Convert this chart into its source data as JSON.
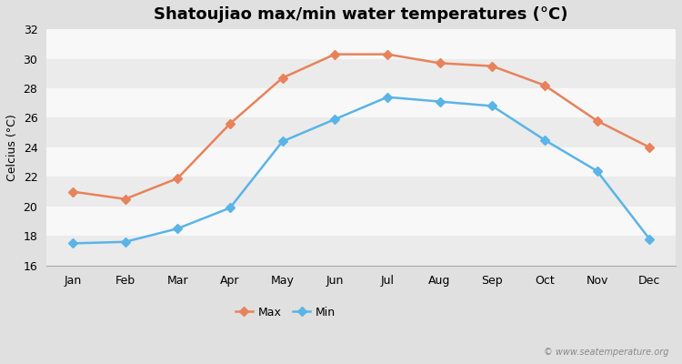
{
  "title": "Shatoujiao max/min water temperatures (°C)",
  "xlabel_months": [
    "Jan",
    "Feb",
    "Mar",
    "Apr",
    "May",
    "Jun",
    "Jul",
    "Aug",
    "Sep",
    "Oct",
    "Nov",
    "Dec"
  ],
  "max_values": [
    21.0,
    20.5,
    21.9,
    25.6,
    28.7,
    30.3,
    30.3,
    29.7,
    29.5,
    28.2,
    25.8,
    24.0
  ],
  "min_values": [
    17.5,
    17.6,
    18.5,
    19.9,
    24.4,
    25.9,
    27.4,
    27.1,
    26.8,
    24.5,
    22.4,
    17.8
  ],
  "max_color": "#e8825a",
  "min_color": "#5ab4e8",
  "ylim": [
    16,
    32
  ],
  "yticks": [
    16,
    18,
    20,
    22,
    24,
    26,
    28,
    30,
    32
  ],
  "band_colors": [
    "#ebebeb",
    "#f8f8f8"
  ],
  "ylabel": "Celcius (°C)",
  "outer_bg": "#e0e0e0",
  "watermark": "© www.seatemperature.org",
  "legend_max": "Max",
  "legend_min": "Min",
  "title_fontsize": 13,
  "axis_fontsize": 9,
  "label_fontsize": 9,
  "marker": "D",
  "marker_size": 5,
  "line_width": 1.8
}
